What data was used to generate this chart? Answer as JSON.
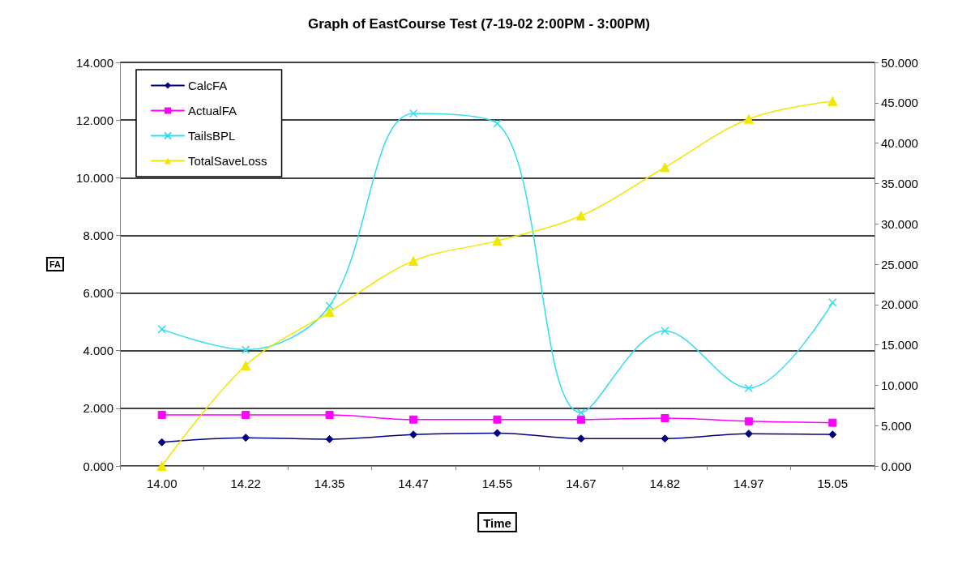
{
  "chart_data": {
    "type": "line",
    "title": "Graph of EastCourse Test (7-19-02 2:00PM - 3:00PM)",
    "xlabel": "Time",
    "ylabel": "FA",
    "categories": [
      "14.00",
      "14.22",
      "14.35",
      "14.47",
      "14.55",
      "14.67",
      "14.82",
      "14.97",
      "15.05"
    ],
    "series": [
      {
        "name": "CalcFA",
        "color": "#000080",
        "marker": "diamond",
        "values": [
          0.82,
          0.98,
          0.93,
          1.09,
          1.14,
          0.95,
          0.95,
          1.12,
          1.09
        ]
      },
      {
        "name": "ActualFA",
        "color": "#ff00ff",
        "marker": "square",
        "values": [
          1.77,
          1.77,
          1.77,
          1.61,
          1.61,
          1.61,
          1.66,
          1.55,
          1.5
        ]
      },
      {
        "name": "TailsBPL",
        "color": "#33ddee",
        "marker": "cross",
        "values": [
          4.74,
          4.03,
          5.56,
          12.23,
          11.88,
          1.85,
          4.69,
          2.7,
          5.67
        ]
      },
      {
        "name": "TotalSaveLoss",
        "color": "#f0e800",
        "marker": "triangle",
        "axis": "y2",
        "values": [
          0,
          12.45,
          19.07,
          25.4,
          27.9,
          31.0,
          37.0,
          43.0,
          45.2
        ]
      }
    ],
    "ylim": [
      0,
      14
    ],
    "yticks": [
      {
        "value": 0,
        "label": "0.000"
      },
      {
        "value": 2,
        "label": "2.000"
      },
      {
        "value": 4,
        "label": "4.000"
      },
      {
        "value": 6,
        "label": "6.000"
      },
      {
        "value": 8,
        "label": "8.000"
      },
      {
        "value": 10,
        "label": "10.000"
      },
      {
        "value": 12,
        "label": "12.000"
      },
      {
        "value": 14,
        "label": "14.000"
      }
    ],
    "y2lim": [
      0,
      50
    ],
    "y2ticks": [
      {
        "value": 0,
        "label": "0.000"
      },
      {
        "value": 5,
        "label": "5.000"
      },
      {
        "value": 10,
        "label": "10.000"
      },
      {
        "value": 15,
        "label": "15.000"
      },
      {
        "value": 20,
        "label": "20.000"
      },
      {
        "value": 25,
        "label": "25.000"
      },
      {
        "value": 30,
        "label": "30.000"
      },
      {
        "value": 35,
        "label": "35.000"
      },
      {
        "value": 40,
        "label": "40.000"
      },
      {
        "value": 45,
        "label": "45.000"
      },
      {
        "value": 50,
        "label": "50.000"
      }
    ],
    "grid": "y",
    "legend": "top left"
  }
}
